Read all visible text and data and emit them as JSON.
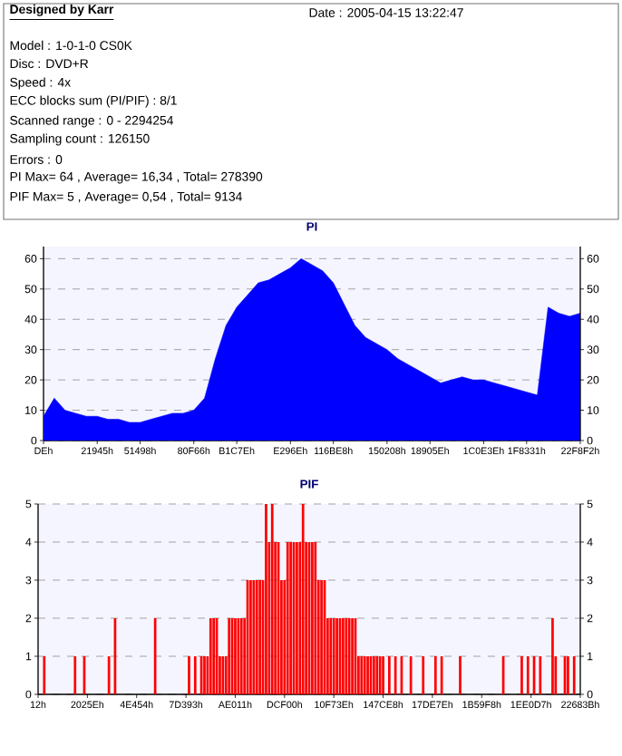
{
  "chart_data": [
    {
      "type": "other",
      "annotations": [
        "Designed by Karr",
        "Date : 2005-04-15 13:22:47",
        "Model : 1-0-1-0 CS0K",
        "Disc : DVD+R",
        "Speed : 4x",
        "ECC blocks sum (PI/PIF) : 8/1",
        "Scanned range : 0 - 2294254",
        "Sampling count : 126150",
        "Errors : 0",
        "PI Max= 64 , Average= 16,34 , Total= 278390",
        "PIF Max= 5 , Average= 0,54 , Total= 9134"
      ]
    },
    {
      "type": "area",
      "title": "PI",
      "color": "#0000ff",
      "grid": "y",
      "ylim": [
        0,
        64
      ],
      "yticks": [
        0,
        10,
        20,
        30,
        40,
        50,
        60
      ],
      "y2lim": [
        0,
        64
      ],
      "y2ticks": [
        0,
        10,
        20,
        30,
        40,
        50,
        60
      ],
      "categories": [
        "DEh",
        null,
        null,
        null,
        null,
        "21945h",
        null,
        null,
        null,
        "51498h",
        null,
        null,
        null,
        null,
        "80F66h",
        null,
        null,
        null,
        "B1C7Eh",
        null,
        null,
        null,
        null,
        "E296Eh",
        null,
        null,
        null,
        "116BE8h",
        null,
        null,
        null,
        null,
        "150208h",
        null,
        null,
        null,
        "18905Eh",
        null,
        null,
        null,
        null,
        "1C0E3Eh",
        null,
        null,
        null,
        "1F8331h",
        null,
        null,
        null,
        null,
        "22F8F2h"
      ],
      "values": [
        8,
        14,
        10,
        9,
        8,
        8,
        7,
        7,
        6,
        6,
        7,
        8,
        9,
        9,
        10,
        14,
        27,
        38,
        44,
        48,
        52,
        53,
        55,
        57,
        60,
        58,
        56,
        52,
        45,
        38,
        34,
        32,
        30,
        27,
        25,
        23,
        21,
        19,
        20,
        21,
        20,
        20,
        19,
        18,
        17,
        16,
        15,
        44,
        42,
        41,
        42
      ]
    },
    {
      "type": "bar",
      "title": "PIF",
      "color": "#ff0000",
      "grid": "y",
      "ylim": [
        0,
        5
      ],
      "yticks": [
        0,
        1,
        2,
        3,
        4,
        5
      ],
      "y2lim": [
        0,
        5
      ],
      "y2ticks": [
        0,
        1,
        2,
        3,
        4,
        5
      ],
      "categories": [
        "12h",
        null,
        null,
        null,
        null,
        null,
        null,
        null,
        null,
        null,
        null,
        null,
        null,
        null,
        null,
        null,
        "2025Eh",
        null,
        null,
        null,
        null,
        null,
        null,
        null,
        null,
        null,
        null,
        null,
        null,
        null,
        null,
        null,
        "4E454h",
        null,
        null,
        null,
        null,
        null,
        null,
        null,
        null,
        null,
        null,
        null,
        null,
        null,
        null,
        null,
        "7D393h",
        null,
        null,
        null,
        null,
        null,
        null,
        null,
        null,
        null,
        null,
        null,
        null,
        null,
        null,
        null,
        "AE011h",
        null,
        null,
        null,
        null,
        null,
        null,
        null,
        null,
        null,
        null,
        null,
        null,
        null,
        null,
        null,
        "DCF00h",
        null,
        null,
        null,
        null,
        null,
        null,
        null,
        null,
        null,
        null,
        null,
        null,
        null,
        null,
        null,
        "10F73Eh",
        null,
        null,
        null,
        null,
        null,
        null,
        null,
        null,
        null,
        null,
        null,
        null,
        null,
        null,
        null,
        "147CE8h",
        null,
        null,
        null,
        null,
        null,
        null,
        null,
        null,
        null,
        null,
        null,
        null,
        null,
        null,
        null,
        "17DE7Eh",
        null,
        null,
        null,
        null,
        null,
        null,
        null,
        null,
        null,
        null,
        null,
        null,
        null,
        null,
        null,
        "1B59F8h",
        null,
        null,
        null,
        null,
        null,
        null,
        null,
        null,
        null,
        null,
        null,
        null,
        null,
        null,
        null,
        "1EE0D7h",
        null,
        null,
        null,
        null,
        null,
        null,
        null,
        null,
        null,
        null,
        null,
        null,
        null,
        null,
        null,
        "22683Bh"
      ],
      "values": [
        0,
        0,
        1,
        0,
        0,
        0,
        0,
        0,
        0,
        0,
        0,
        0,
        1,
        0,
        0,
        1,
        0,
        0,
        0,
        0,
        0,
        0,
        0,
        1,
        0,
        2,
        0,
        0,
        0,
        0,
        0,
        0,
        0,
        0,
        0,
        0,
        0,
        0,
        2,
        0,
        0,
        0,
        0,
        0,
        0,
        0,
        0,
        0,
        0,
        1,
        0,
        1,
        0,
        1,
        1,
        1,
        2,
        2,
        2,
        1,
        1,
        1,
        2,
        2,
        2,
        2,
        2,
        2,
        3,
        3,
        3,
        3,
        3,
        3,
        5,
        4,
        5,
        4,
        4,
        3,
        3,
        4,
        4,
        4,
        4,
        4,
        5,
        4,
        4,
        4,
        4,
        3,
        3,
        3,
        2,
        2,
        2,
        2,
        2,
        2,
        2,
        2,
        2,
        2,
        1,
        1,
        1,
        1,
        1,
        1,
        1,
        1,
        1,
        0,
        1,
        0,
        1,
        0,
        1,
        0,
        0,
        1,
        0,
        0,
        0,
        1,
        0,
        0,
        0,
        1,
        0,
        1,
        0,
        0,
        0,
        0,
        0,
        1,
        0,
        0,
        0,
        0,
        0,
        0,
        0,
        0,
        0,
        0,
        0,
        0,
        0,
        1,
        0,
        0,
        0,
        0,
        0,
        1,
        0,
        1,
        0,
        1,
        0,
        1,
        0,
        0,
        0,
        2,
        1,
        0,
        0,
        1,
        1,
        0,
        1,
        0,
        0
      ]
    }
  ]
}
